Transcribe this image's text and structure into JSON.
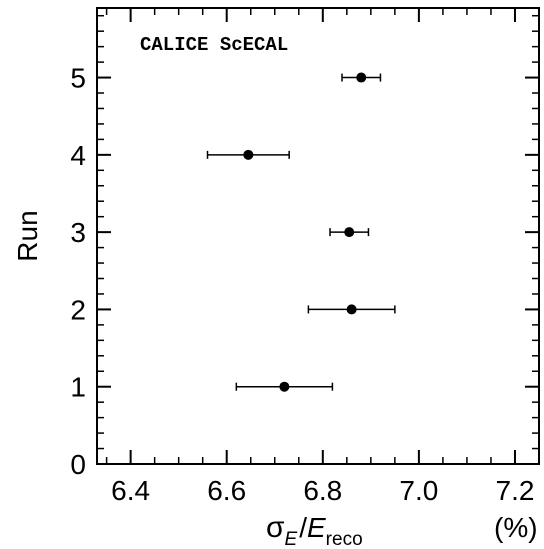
{
  "chart_data": {
    "type": "scatter",
    "annotation": "CALICE ScECAL",
    "xlabel": {
      "sigma": "σ",
      "sigma_sub": "E",
      "slash": "/",
      "e": "E",
      "e_sub": "reco",
      "unit": "(%)"
    },
    "ylabel": "Run",
    "xlim": [
      6.33,
      7.25
    ],
    "ylim": [
      0,
      5.9
    ],
    "x_ticks": [
      "6.4",
      "6.6",
      "6.8",
      "7.0",
      "7.2"
    ],
    "x_tick_values": [
      6.4,
      6.6,
      6.8,
      7.0,
      7.2
    ],
    "y_ticks": [
      "0",
      "1",
      "2",
      "3",
      "4",
      "5"
    ],
    "y_tick_values": [
      0,
      1,
      2,
      3,
      4,
      5
    ],
    "points": [
      {
        "run": 1,
        "x": 6.72,
        "xerr_low": 6.62,
        "xerr_high": 6.82
      },
      {
        "run": 2,
        "x": 6.86,
        "xerr_low": 6.77,
        "xerr_high": 6.95
      },
      {
        "run": 3,
        "x": 6.855,
        "xerr_low": 6.815,
        "xerr_high": 6.895
      },
      {
        "run": 4,
        "x": 6.645,
        "xerr_low": 6.56,
        "xerr_high": 6.73
      },
      {
        "run": 5,
        "x": 6.88,
        "xerr_low": 6.84,
        "xerr_high": 6.92
      }
    ],
    "grid": false,
    "legend": "none"
  }
}
